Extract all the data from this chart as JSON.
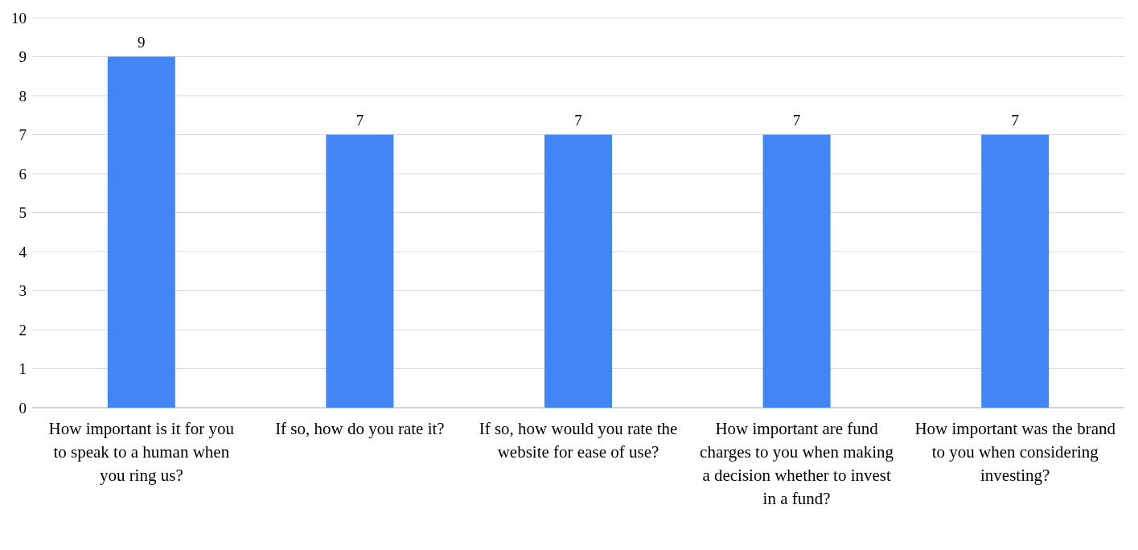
{
  "chart_data": {
    "type": "bar",
    "categories": [
      "How important is it for you to speak to a human when you ring us?",
      "If so, how do you rate it?",
      "If so, how would you rate the website for ease of use?",
      "How important are fund charges to you when making a decision whether to invest in a fund?",
      "How important was the brand to you when considering investing?"
    ],
    "values": [
      9,
      7,
      7,
      7,
      7
    ],
    "color": "#4285f4",
    "ylim": [
      0,
      10
    ],
    "yticks": [
      0,
      1,
      2,
      3,
      4,
      5,
      6,
      7,
      8,
      9,
      10
    ],
    "grid": "y",
    "data_labels": true
  }
}
